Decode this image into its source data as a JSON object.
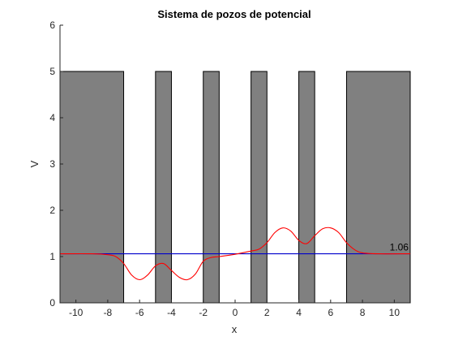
{
  "chart_data": {
    "type": "line",
    "title": "Sistema de pozos de potencial",
    "xlabel": "x",
    "ylabel": "V",
    "xlim": [
      -11,
      11
    ],
    "ylim": [
      0,
      6
    ],
    "xticks": [
      -10,
      -8,
      -6,
      -4,
      -2,
      0,
      2,
      4,
      6,
      8,
      10
    ],
    "yticks": [
      0,
      1,
      2,
      3,
      4,
      5,
      6
    ],
    "grid": false,
    "colors": {
      "barrier_fill": "#808080",
      "energy_line": "#0000cc",
      "wave_line": "#ff0000"
    },
    "barriers": [
      {
        "x0": -11,
        "x1": -7,
        "height": 5
      },
      {
        "x0": -5,
        "x1": -4,
        "height": 5
      },
      {
        "x0": -2,
        "x1": -1,
        "height": 5
      },
      {
        "x0": 1,
        "x1": 2,
        "height": 5
      },
      {
        "x0": 4,
        "x1": 5,
        "height": 5
      },
      {
        "x0": 7,
        "x1": 11,
        "height": 5
      }
    ],
    "series": [
      {
        "kind": "energy",
        "x": [
          -11,
          11
        ],
        "y": [
          1.06,
          1.06
        ]
      },
      {
        "kind": "wavefunction",
        "x": [
          -11,
          -9,
          -8,
          -7.5,
          -7,
          -6.5,
          -6,
          -5.5,
          -5,
          -4.5,
          -4,
          -3.5,
          -3,
          -2.5,
          -2,
          -1.5,
          -1,
          0,
          1,
          1.5,
          2,
          2.5,
          3,
          3.5,
          4,
          4.5,
          5,
          5.5,
          6,
          6.5,
          7,
          7.5,
          8,
          9,
          11
        ],
        "y": [
          1.06,
          1.06,
          1.04,
          1.0,
          0.85,
          0.6,
          0.5,
          0.6,
          0.8,
          0.85,
          0.7,
          0.55,
          0.5,
          0.62,
          0.9,
          0.98,
          1.0,
          1.05,
          1.12,
          1.16,
          1.3,
          1.52,
          1.62,
          1.55,
          1.35,
          1.28,
          1.45,
          1.6,
          1.62,
          1.52,
          1.3,
          1.15,
          1.08,
          1.06,
          1.06
        ]
      }
    ],
    "annotations": [
      {
        "text": "1.06",
        "x": 10.3,
        "y": 1.06
      }
    ]
  }
}
